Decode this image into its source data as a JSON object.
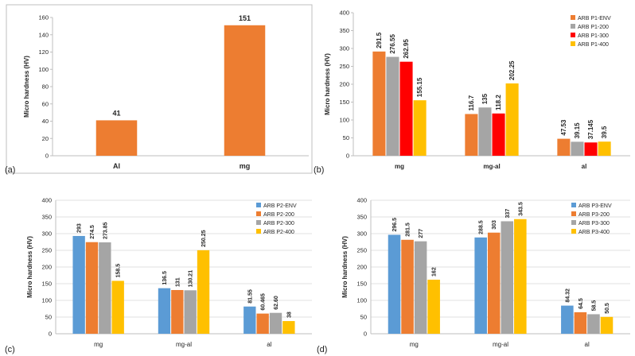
{
  "panel_letters": [
    "(a)",
    "(b)",
    "(c)",
    "(d)"
  ],
  "colors": {
    "orange": "#ED7D31",
    "gray": "#A5A5A5",
    "red": "#FF0000",
    "yellow": "#FFC000",
    "blue": "#5B9BD5",
    "axis": "#BFBFBF",
    "grid": "#D9D9D9",
    "text": "#262626"
  },
  "chart_data": [
    {
      "id": "a",
      "type": "bar",
      "categories": [
        "Al",
        "mg"
      ],
      "series": [
        {
          "values": [
            41,
            151
          ],
          "labels": [
            "41",
            "151"
          ],
          "color": "#ED7D31"
        }
      ],
      "ylabel": "Micro hardness (HV)",
      "ylim": [
        0,
        160
      ],
      "yticks": [
        0,
        20,
        40,
        60,
        80,
        100,
        120,
        140,
        160
      ],
      "grid": false,
      "legend": "none"
    },
    {
      "id": "b",
      "type": "bar",
      "categories": [
        "mg",
        "mg-al",
        "al"
      ],
      "series": [
        {
          "name": "ARB P1-ENV",
          "values": [
            291.5,
            116.7,
            47.53
          ],
          "labels": [
            "291.5",
            "116.7",
            "47.53"
          ],
          "color": "#ED7D31"
        },
        {
          "name": "ARB P1-200",
          "values": [
            276.55,
            135,
            39.15
          ],
          "labels": [
            "276.55",
            "135",
            "39.15"
          ],
          "color": "#A5A5A5"
        },
        {
          "name": "ARB P1-300",
          "values": [
            262.95,
            118.2,
            37.145
          ],
          "labels": [
            "262.95",
            "118.2",
            "37.145"
          ],
          "color": "#FF0000"
        },
        {
          "name": "ARB P1-400",
          "values": [
            155.15,
            202.25,
            39.5
          ],
          "labels": [
            "155.15",
            "202.25",
            "39.5"
          ],
          "color": "#FFC000"
        }
      ],
      "ylabel": "Micro hardness (HV)",
      "ylim": [
        0,
        400
      ],
      "yticks": [
        0,
        50,
        100,
        150,
        200,
        250,
        300,
        350,
        400
      ],
      "grid": false,
      "legend": "top-right"
    },
    {
      "id": "c",
      "type": "bar",
      "categories": [
        "mg",
        "mg-al",
        "al"
      ],
      "series": [
        {
          "name": "ARB P2-ENV",
          "values": [
            293,
            136.5,
            81.55
          ],
          "labels": [
            "293",
            "136.5",
            "81.55"
          ],
          "color": "#5B9BD5"
        },
        {
          "name": "ARB P2-200",
          "values": [
            274.5,
            131,
            60.465
          ],
          "labels": [
            "274.5",
            "131",
            "60.465"
          ],
          "color": "#ED7D31"
        },
        {
          "name": "ARB P2-300",
          "values": [
            273.85,
            130.21,
            62.6
          ],
          "labels": [
            "273.85",
            "130.21",
            "62.60"
          ],
          "color": "#A5A5A5"
        },
        {
          "name": "ARB P2-400",
          "values": [
            158.5,
            250.25,
            38
          ],
          "labels": [
            "158.5",
            "250.25",
            "38"
          ],
          "color": "#FFC000"
        }
      ],
      "ylabel": "Micro hardness (HV)",
      "ylim": [
        0,
        400
      ],
      "yticks": [
        0,
        50,
        100,
        150,
        200,
        250,
        300,
        350,
        400
      ],
      "grid": true,
      "legend": "top-right"
    },
    {
      "id": "d",
      "type": "bar",
      "categories": [
        "mg",
        "mg-al",
        "al"
      ],
      "series": [
        {
          "name": "ARB P3-ENV",
          "values": [
            296.5,
            288.5,
            84.32
          ],
          "labels": [
            "296.5",
            "288.5",
            "84.32"
          ],
          "color": "#5B9BD5"
        },
        {
          "name": "ARB P3-200",
          "values": [
            281.5,
            303,
            64.5
          ],
          "labels": [
            "281.5",
            "303",
            "64.5"
          ],
          "color": "#ED7D31"
        },
        {
          "name": "ARB P3-300",
          "values": [
            277,
            337,
            58.5
          ],
          "labels": [
            "277",
            "337",
            "58.5"
          ],
          "color": "#A5A5A5"
        },
        {
          "name": "ARB P3-400",
          "values": [
            162,
            343.5,
            50.5
          ],
          "labels": [
            "162",
            "343.5",
            "50.5"
          ],
          "color": "#FFC000"
        }
      ],
      "ylabel": "Micro hardness (HV)",
      "ylim": [
        0,
        400
      ],
      "yticks": [
        0,
        50,
        100,
        150,
        200,
        250,
        300,
        350,
        400
      ],
      "grid": true,
      "legend": "top-right"
    }
  ]
}
